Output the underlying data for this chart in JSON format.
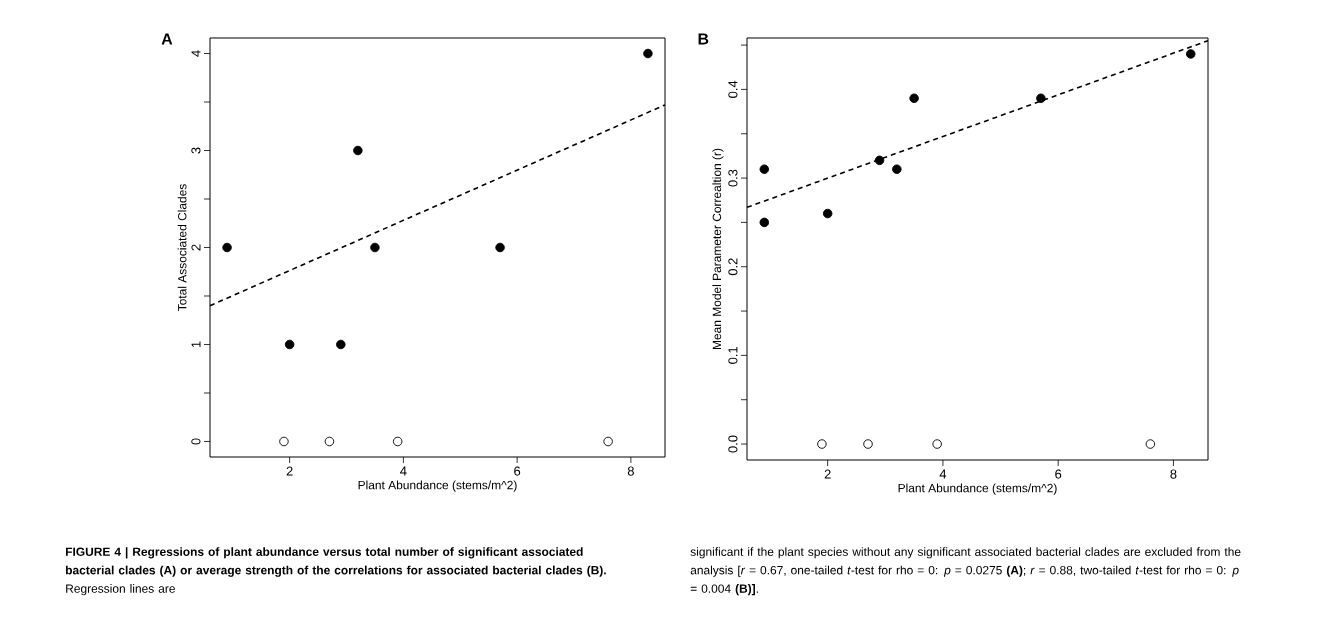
{
  "chart_data": [
    {
      "type": "scatter",
      "title": "A",
      "xlabel": "Plant Abundance (stems/m^2)",
      "ylabel": "Total Associated Clades",
      "marker": "circle",
      "xlim": [
        0.6,
        8.6
      ],
      "ylim": [
        -0.16,
        4.16
      ],
      "xticks": [
        2,
        4,
        6,
        8
      ],
      "yticks": [
        0,
        {
          "value": 0.5,
          "label": null
        },
        1,
        {
          "value": 1.5,
          "label": null
        },
        2,
        {
          "value": 2.5,
          "label": null
        },
        3,
        {
          "value": 3.5,
          "label": null
        },
        4
      ],
      "series": [
        {
          "color": "#000000",
          "x": [
            0.9,
            2.0,
            2.9,
            3.2,
            3.5,
            5.7,
            8.3
          ],
          "values": [
            2,
            1,
            1,
            3,
            2,
            2,
            4
          ]
        },
        {
          "color": "#ffffff",
          "x": [
            1.9,
            2.7,
            3.9,
            7.6
          ],
          "values": [
            0,
            0,
            0,
            0
          ]
        },
        {
          "type": "line",
          "color": "#000000",
          "line_style": "dashed",
          "marker": "none",
          "x": [
            0.6,
            8.6
          ],
          "values": [
            1.4,
            3.47
          ]
        }
      ],
      "annotations": [
        "**FIGURE 4 | Regressions of plant abundance versus total number of significant associated bacterial clades (A) or average strength of the correlations for associated bacterial clades (B).** Regression lines are",
        "significant if the plant species without any significant associated bacterial clades are excluded from the analysis [*r* = 0.67, one-tailed *t*-test for rho = 0: *p* = 0.0275 **(A)**; *r* = 0.88, two-tailed *t*-test for rho = 0: *p* = 0.004 **(B)]**."
      ]
    },
    {
      "type": "scatter",
      "title": "B",
      "xlabel": "Plant Abundance (stems/m^2)",
      "ylabel": "Mean Model Parameter Correaltion (r)",
      "marker": "circle",
      "xlim": [
        0.6,
        8.6
      ],
      "ylim": [
        -0.018,
        0.458
      ],
      "xticks": [
        2,
        4,
        6,
        8
      ],
      "yticks": [
        {
          "value": 0,
          "label": "0.0"
        },
        {
          "value": 0.05,
          "label": null
        },
        0.1,
        {
          "value": 0.15,
          "label": null
        },
        0.2,
        {
          "value": 0.25,
          "label": null
        },
        0.3,
        {
          "value": 0.35,
          "label": null
        },
        0.4,
        {
          "value": 0.45,
          "label": null
        }
      ],
      "series": [
        {
          "color": "#000000",
          "x": [
            0.9,
            0.9,
            2.0,
            2.9,
            3.2,
            3.5,
            5.7,
            8.3
          ],
          "values": [
            0.31,
            0.25,
            0.26,
            0.32,
            0.31,
            0.39,
            0.39,
            0.44
          ]
        },
        {
          "color": "#ffffff",
          "x": [
            1.9,
            2.7,
            3.9,
            7.6
          ],
          "values": [
            0,
            0,
            0,
            0
          ]
        },
        {
          "type": "line",
          "color": "#000000",
          "line_style": "dashed",
          "marker": "none",
          "x": [
            0.6,
            8.6
          ],
          "values": [
            0.267,
            0.455
          ]
        }
      ]
    }
  ]
}
